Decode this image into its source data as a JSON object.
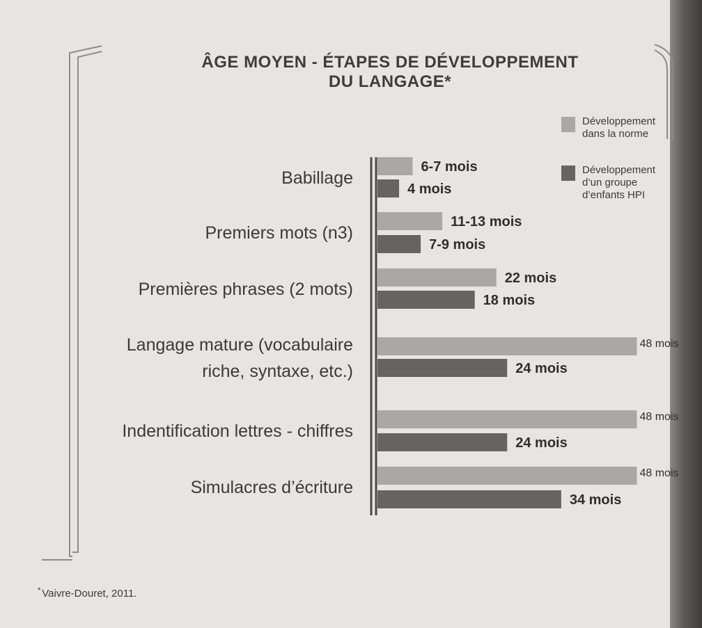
{
  "title_line1": "ÂGE MOYEN - ÉTAPES DE DÉVELOPPEMENT",
  "title_line2": "DU LANGAGE*",
  "colors": {
    "norme": "#a9a8a6",
    "hpi": "#656462",
    "axis": "#4a4a4a"
  },
  "legend": {
    "norme": [
      "Développement",
      "dans la norme"
    ],
    "hpi": [
      "Développement",
      "d’un groupe",
      "d’enfants HPI"
    ]
  },
  "footnote": {
    "mark": "*",
    "text": "Vaivre-Douret, 2011."
  },
  "chart_data": {
    "type": "bar",
    "orientation": "horizontal",
    "title": "ÂGE MOYEN - ÉTAPES DE DÉVELOPPEMENT DU LANGAGE*",
    "xlabel": "",
    "ylabel": "",
    "xlim": [
      0,
      50
    ],
    "unit": "mois",
    "categories": [
      [
        "Babillage"
      ],
      [
        "Premiers mots (n3)"
      ],
      [
        "Premières phrases (2 mots)"
      ],
      [
        "Langage mature (vocabulaire",
        "riche, syntaxe, etc.)"
      ],
      [
        "Indentification lettres - chiffres"
      ],
      [
        "Simulacres d’écriture"
      ]
    ],
    "series": [
      {
        "name": "Développement dans la norme",
        "color_key": "norme",
        "values": [
          6.5,
          12,
          22,
          48,
          48,
          48
        ],
        "labels": [
          "6-7 mois",
          "11-13 mois",
          "22 mois",
          "48 mois",
          "48 mois",
          "48 mois"
        ]
      },
      {
        "name": "Développement d’un groupe d’enfants HPI",
        "color_key": "hpi",
        "values": [
          4,
          8,
          18,
          24,
          24,
          34
        ],
        "labels": [
          "4 mois",
          "7-9 mois",
          "18 mois",
          "24 mois",
          "24 mois",
          "34 mois"
        ]
      }
    ]
  }
}
